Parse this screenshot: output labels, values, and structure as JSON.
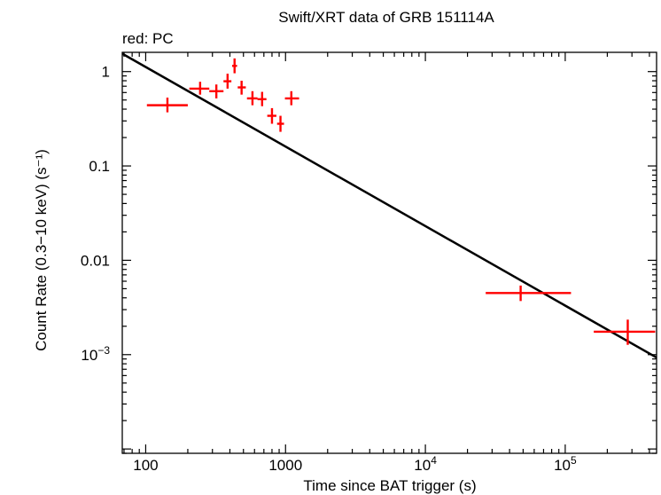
{
  "chart_data": {
    "type": "scatter",
    "title": "Swift/XRT data of GRB 151114A",
    "subtitle": "red: PC",
    "xlabel": "Time since BAT trigger (s)",
    "ylabel": "Count Rate (0.3−10 keV) (s⁻¹)",
    "xscale": "log",
    "yscale": "log",
    "xlim": [
      68,
      450000
    ],
    "ylim": [
      9e-05,
      1.6
    ],
    "x_ticks": [
      {
        "value": 100,
        "label": "100"
      },
      {
        "value": 1000,
        "label": "1000"
      },
      {
        "value": 10000,
        "label": "10",
        "sup": "4"
      },
      {
        "value": 100000,
        "label": "10",
        "sup": "5"
      }
    ],
    "y_ticks": [
      {
        "value": 1,
        "label": "1"
      },
      {
        "value": 0.1,
        "label": "0.1"
      },
      {
        "value": 0.01,
        "label": "0.01"
      },
      {
        "value": 0.001,
        "label": "10",
        "sup": "−3"
      }
    ],
    "series": [
      {
        "name": "PC",
        "color": "#ff0000",
        "points": [
          {
            "x": 143,
            "xlo": 102,
            "xhi": 200,
            "y": 0.44,
            "ylo": 0.37,
            "yhi": 0.53
          },
          {
            "x": 245,
            "xlo": 205,
            "xhi": 285,
            "y": 0.66,
            "ylo": 0.57,
            "yhi": 0.78
          },
          {
            "x": 320,
            "xlo": 285,
            "xhi": 360,
            "y": 0.62,
            "ylo": 0.52,
            "yhi": 0.73
          },
          {
            "x": 385,
            "xlo": 360,
            "xhi": 410,
            "y": 0.79,
            "ylo": 0.66,
            "yhi": 0.95
          },
          {
            "x": 432,
            "xlo": 415,
            "xhi": 450,
            "y": 1.15,
            "ylo": 0.96,
            "yhi": 1.38
          },
          {
            "x": 485,
            "xlo": 455,
            "xhi": 520,
            "y": 0.68,
            "ylo": 0.57,
            "yhi": 0.8
          },
          {
            "x": 580,
            "xlo": 530,
            "xhi": 630,
            "y": 0.52,
            "ylo": 0.44,
            "yhi": 0.62
          },
          {
            "x": 680,
            "xlo": 630,
            "xhi": 730,
            "y": 0.51,
            "ylo": 0.43,
            "yhi": 0.61
          },
          {
            "x": 800,
            "xlo": 740,
            "xhi": 860,
            "y": 0.34,
            "ylo": 0.28,
            "yhi": 0.41
          },
          {
            "x": 920,
            "xlo": 870,
            "xhi": 975,
            "y": 0.28,
            "ylo": 0.23,
            "yhi": 0.34
          },
          {
            "x": 1100,
            "xlo": 990,
            "xhi": 1250,
            "y": 0.52,
            "ylo": 0.44,
            "yhi": 0.62
          },
          {
            "x": 48000,
            "xlo": 27000,
            "xhi": 110000,
            "y": 0.0045,
            "ylo": 0.0037,
            "yhi": 0.0054
          },
          {
            "x": 280000,
            "xlo": 160000,
            "xhi": 440000,
            "y": 0.00175,
            "ylo": 0.00127,
            "yhi": 0.00235
          }
        ]
      }
    ],
    "model": {
      "name": "power-law fit",
      "color": "#000000",
      "points": [
        {
          "x": 68,
          "y": 1.55
        },
        {
          "x": 450000,
          "y": 0.00093
        }
      ]
    }
  }
}
